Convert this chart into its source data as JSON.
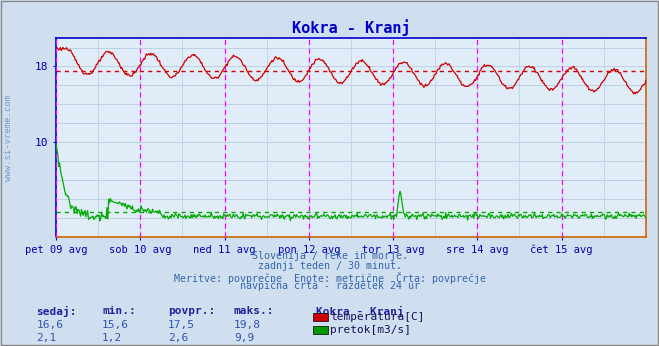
{
  "title": "Kokra - Kranj",
  "title_color": "#0000cc",
  "bg_color": "#d0dff0",
  "plot_bg_color": "#e0ecf8",
  "border_color": "#0000cc",
  "grid_color": "#b8cce0",
  "x_label_color": "#0000aa",
  "y_label_color": "#0000aa",
  "watermark": "www.si-vreme.com",
  "subtitle_lines": [
    "Slovenija / reke in morje.",
    "zadnji teden / 30 minut.",
    "Meritve: povprečne  Enote: metrične  Črta: povprečje",
    "navpična črta - razdelek 24 ur"
  ],
  "x_ticks_labels": [
    "pet 09 avg",
    "sob 10 avg",
    "ned 11 avg",
    "pon 12 avg",
    "tor 13 avg",
    "sre 14 avg",
    "čet 15 avg"
  ],
  "x_ticks_pos": [
    0,
    48,
    96,
    144,
    192,
    240,
    288
  ],
  "y_ticks": [
    10,
    18
  ],
  "ylim": [
    0,
    21
  ],
  "xlim": [
    0,
    336
  ],
  "temp_avg": 17.5,
  "flow_avg": 2.6,
  "temp_color": "#cc0000",
  "flow_color": "#00aa00",
  "vline_color": "#ff00ff",
  "hline_color_temp": "#cc0000",
  "hline_color_flow": "#00aa00",
  "legend_title": "Kokra - Kranj",
  "legend_items": [
    {
      "label": "temperatura[C]",
      "color": "#cc0000"
    },
    {
      "label": "pretok[m3/s]",
      "color": "#009900"
    }
  ],
  "stats_headers": [
    "sedaj:",
    "min.:",
    "povpr.:",
    "maks.:"
  ],
  "stats_temp": [
    "16,6",
    "15,6",
    "17,5",
    "19,8"
  ],
  "stats_flow": [
    "2,1",
    "1,2",
    "2,6",
    "9,9"
  ]
}
